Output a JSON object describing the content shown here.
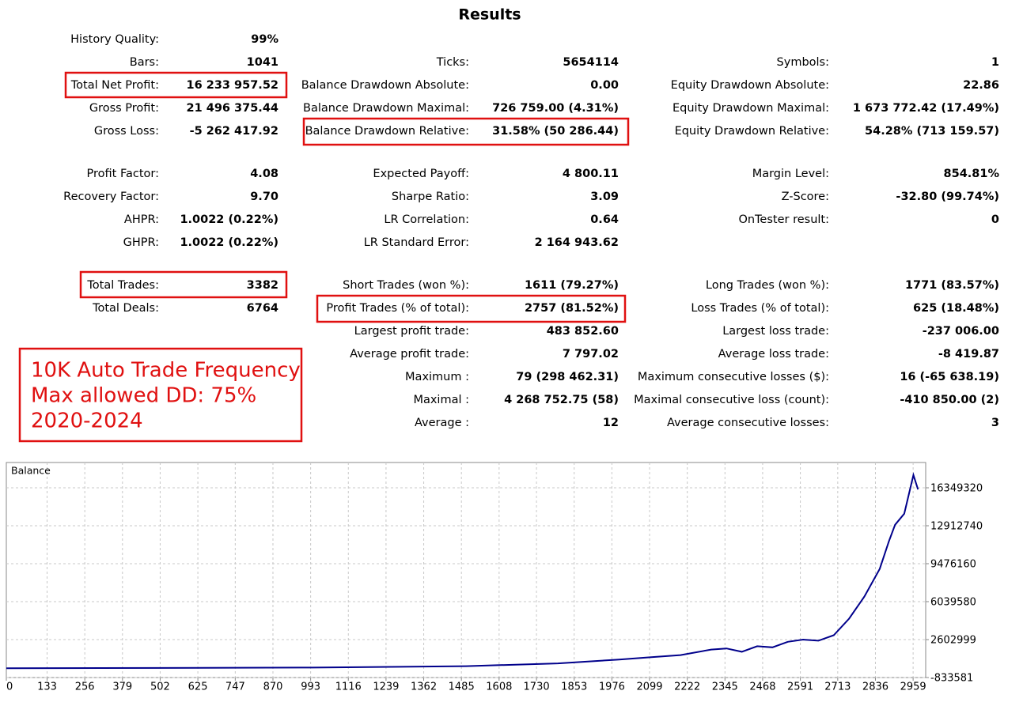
{
  "results": {
    "title": "Results",
    "rows": [
      [
        [
          "History Quality:",
          "99%"
        ],
        null,
        null
      ],
      [
        [
          "Bars:",
          "1041"
        ],
        [
          "Ticks:",
          "5654114"
        ],
        [
          "Symbols:",
          "1"
        ]
      ],
      [
        [
          "Total Net Profit:",
          "16 233 957.52"
        ],
        [
          "Balance Drawdown Absolute:",
          "0.00"
        ],
        [
          "Equity Drawdown Absolute:",
          "22.86"
        ]
      ],
      [
        [
          "Gross Profit:",
          "21 496 375.44"
        ],
        [
          "Balance Drawdown Maximal:",
          "726 759.00 (4.31%)"
        ],
        [
          "Equity Drawdown Maximal:",
          "1 673 772.42 (17.49%)"
        ]
      ],
      [
        [
          "Gross Loss:",
          "-5 262 417.92"
        ],
        [
          "Balance Drawdown Relative:",
          "31.58% (50 286.44)"
        ],
        [
          "Equity Drawdown Relative:",
          "54.28% (713 159.57)"
        ]
      ],
      [
        [
          "Profit Factor:",
          "4.08"
        ],
        [
          "Expected Payoff:",
          "4 800.11"
        ],
        [
          "Margin Level:",
          "854.81%"
        ]
      ],
      [
        [
          "Recovery Factor:",
          "9.70"
        ],
        [
          "Sharpe Ratio:",
          "3.09"
        ],
        [
          "Z-Score:",
          "-32.80 (99.74%)"
        ]
      ],
      [
        [
          "AHPR:",
          "1.0022 (0.22%)"
        ],
        [
          "LR Correlation:",
          "0.64"
        ],
        [
          "OnTester result:",
          "0"
        ]
      ],
      [
        [
          "GHPR:",
          "1.0022 (0.22%)"
        ],
        [
          "LR Standard Error:",
          "2 164 943.62"
        ],
        null
      ],
      [
        [
          "Total Trades:",
          "3382"
        ],
        [
          "Short Trades (won %):",
          "1611 (79.27%)"
        ],
        [
          "Long Trades (won %):",
          "1771 (83.57%)"
        ]
      ],
      [
        [
          "Total Deals:",
          "6764"
        ],
        [
          "Profit Trades (% of total):",
          "2757 (81.52%)"
        ],
        [
          "Loss Trades (% of total):",
          "625 (18.48%)"
        ]
      ],
      [
        null,
        [
          "Largest profit trade:",
          "483 852.60"
        ],
        [
          "Largest loss trade:",
          "-237 006.00"
        ]
      ],
      [
        null,
        [
          "Average profit trade:",
          "7 797.02"
        ],
        [
          "Average loss trade:",
          "-8 419.87"
        ]
      ],
      [
        null,
        [
          "Maximum :",
          "79 (298 462.31)"
        ],
        [
          "Maximum consecutive losses ($):",
          "16 (-65 638.19)"
        ]
      ],
      [
        null,
        [
          "Maximal :",
          "4 268 752.75 (58)"
        ],
        [
          "Maximal consecutive loss (count):",
          "-410 850.00 (2)"
        ]
      ],
      [
        null,
        [
          "Average :",
          "12"
        ],
        [
          "Average consecutive losses:",
          "3"
        ]
      ]
    ]
  },
  "annotation": [
    "10K Auto Trade Frequency",
    "Max allowed DD: 75%",
    "2020-2024"
  ],
  "chart_data": {
    "type": "line",
    "title": "Balance",
    "color": "#00008b",
    "grid": true,
    "x": [
      0,
      500,
      1000,
      1500,
      1800,
      2000,
      2100,
      2200,
      2300,
      2350,
      2400,
      2450,
      2500,
      2550,
      2600,
      2650,
      2700,
      2750,
      2800,
      2850,
      2880,
      2900,
      2930,
      2960,
      2975
    ],
    "values": [
      10000,
      30000,
      70000,
      200000,
      450000,
      800000,
      1000000,
      1200000,
      1700000,
      1800000,
      1500000,
      2000000,
      1900000,
      2400000,
      2600000,
      2500000,
      3000000,
      4500000,
      6500000,
      9000000,
      11500000,
      13000000,
      14000000,
      17500000,
      16200000
    ],
    "xlim": [
      0,
      3000
    ],
    "xticks": [
      0,
      133,
      256,
      379,
      502,
      625,
      747,
      870,
      993,
      1116,
      1239,
      1362,
      1485,
      1608,
      1730,
      1853,
      1976,
      2099,
      2222,
      2345,
      2468,
      2591,
      2713,
      2836,
      2959
    ],
    "ylim": [
      -833581,
      18640000
    ],
    "yticks": [
      -833581,
      2602999,
      6039580,
      9476160,
      12912740,
      16349320
    ]
  }
}
